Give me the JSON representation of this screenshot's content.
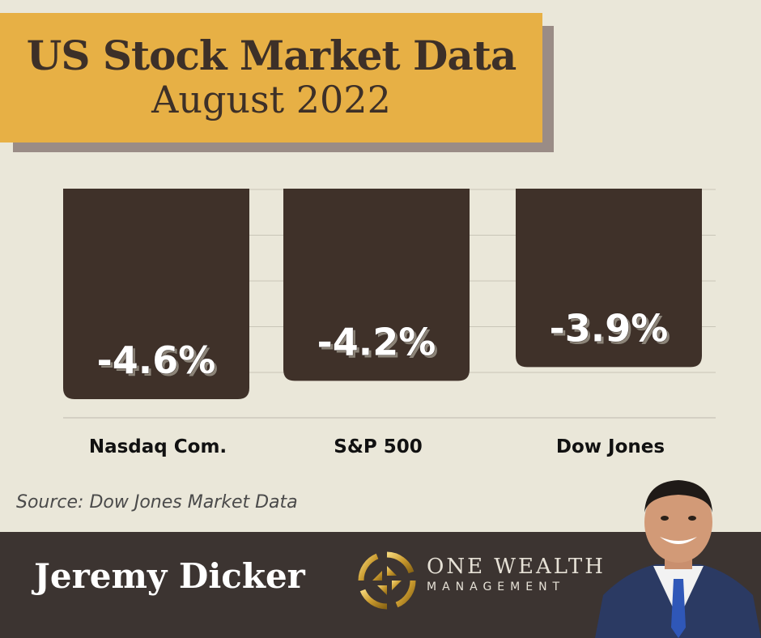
{
  "header": {
    "title": "US Stock Market Data",
    "subtitle": "August 2022"
  },
  "chart_data": {
    "type": "bar",
    "categories": [
      "Nasdaq Com.",
      "S&P 500",
      "Dow Jones"
    ],
    "values": [
      -4.6,
      -4.2,
      -3.9
    ],
    "value_labels": [
      "-4.6%",
      "-4.2%",
      "-3.9%"
    ],
    "ylim": [
      -4.6,
      0
    ],
    "grid": true,
    "colors": {
      "bar": "#3f3129",
      "grid": "#c9c6b8"
    }
  },
  "source": "Source: Dow Jones Market Data",
  "footer": {
    "name": "Jeremy Dicker",
    "brand_main": "ONE WEALTH",
    "brand_sub": "MANAGEMENT"
  },
  "colors": {
    "title_bg": "#e7b045",
    "footer_bg": "#3c3431",
    "page_bg": "#eae7d9"
  },
  "icons": {
    "logo": "gold-spiral-logo-icon",
    "portrait": "person-portrait"
  }
}
